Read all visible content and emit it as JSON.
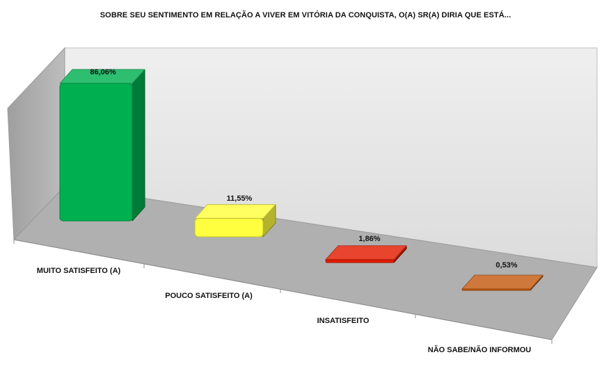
{
  "chart_data": {
    "type": "bar",
    "title": "SOBRE SEU SENTIMENTO EM RELAÇÃO A VIVER EM VITÓRIA DA CONQUISTA, O(A) SR(A) DIRIA QUE ESTÁ...",
    "categories": [
      "MUITO SATISFEITO (A)",
      "POUCO SATISFEITO (A)",
      "INSATISFEITO",
      "NÃO SABE/NÃO INFORMOU"
    ],
    "values": [
      86.06,
      11.55,
      1.86,
      0.53
    ],
    "value_labels": [
      "86,06%",
      "11,55%",
      "1,86%",
      "0,53%"
    ],
    "colors": [
      "#00b050",
      "#ffff40",
      "#e31b00",
      "#c55a11"
    ],
    "ylim": [
      0,
      100
    ],
    "grid": false,
    "legend": "none",
    "three_d": true
  }
}
